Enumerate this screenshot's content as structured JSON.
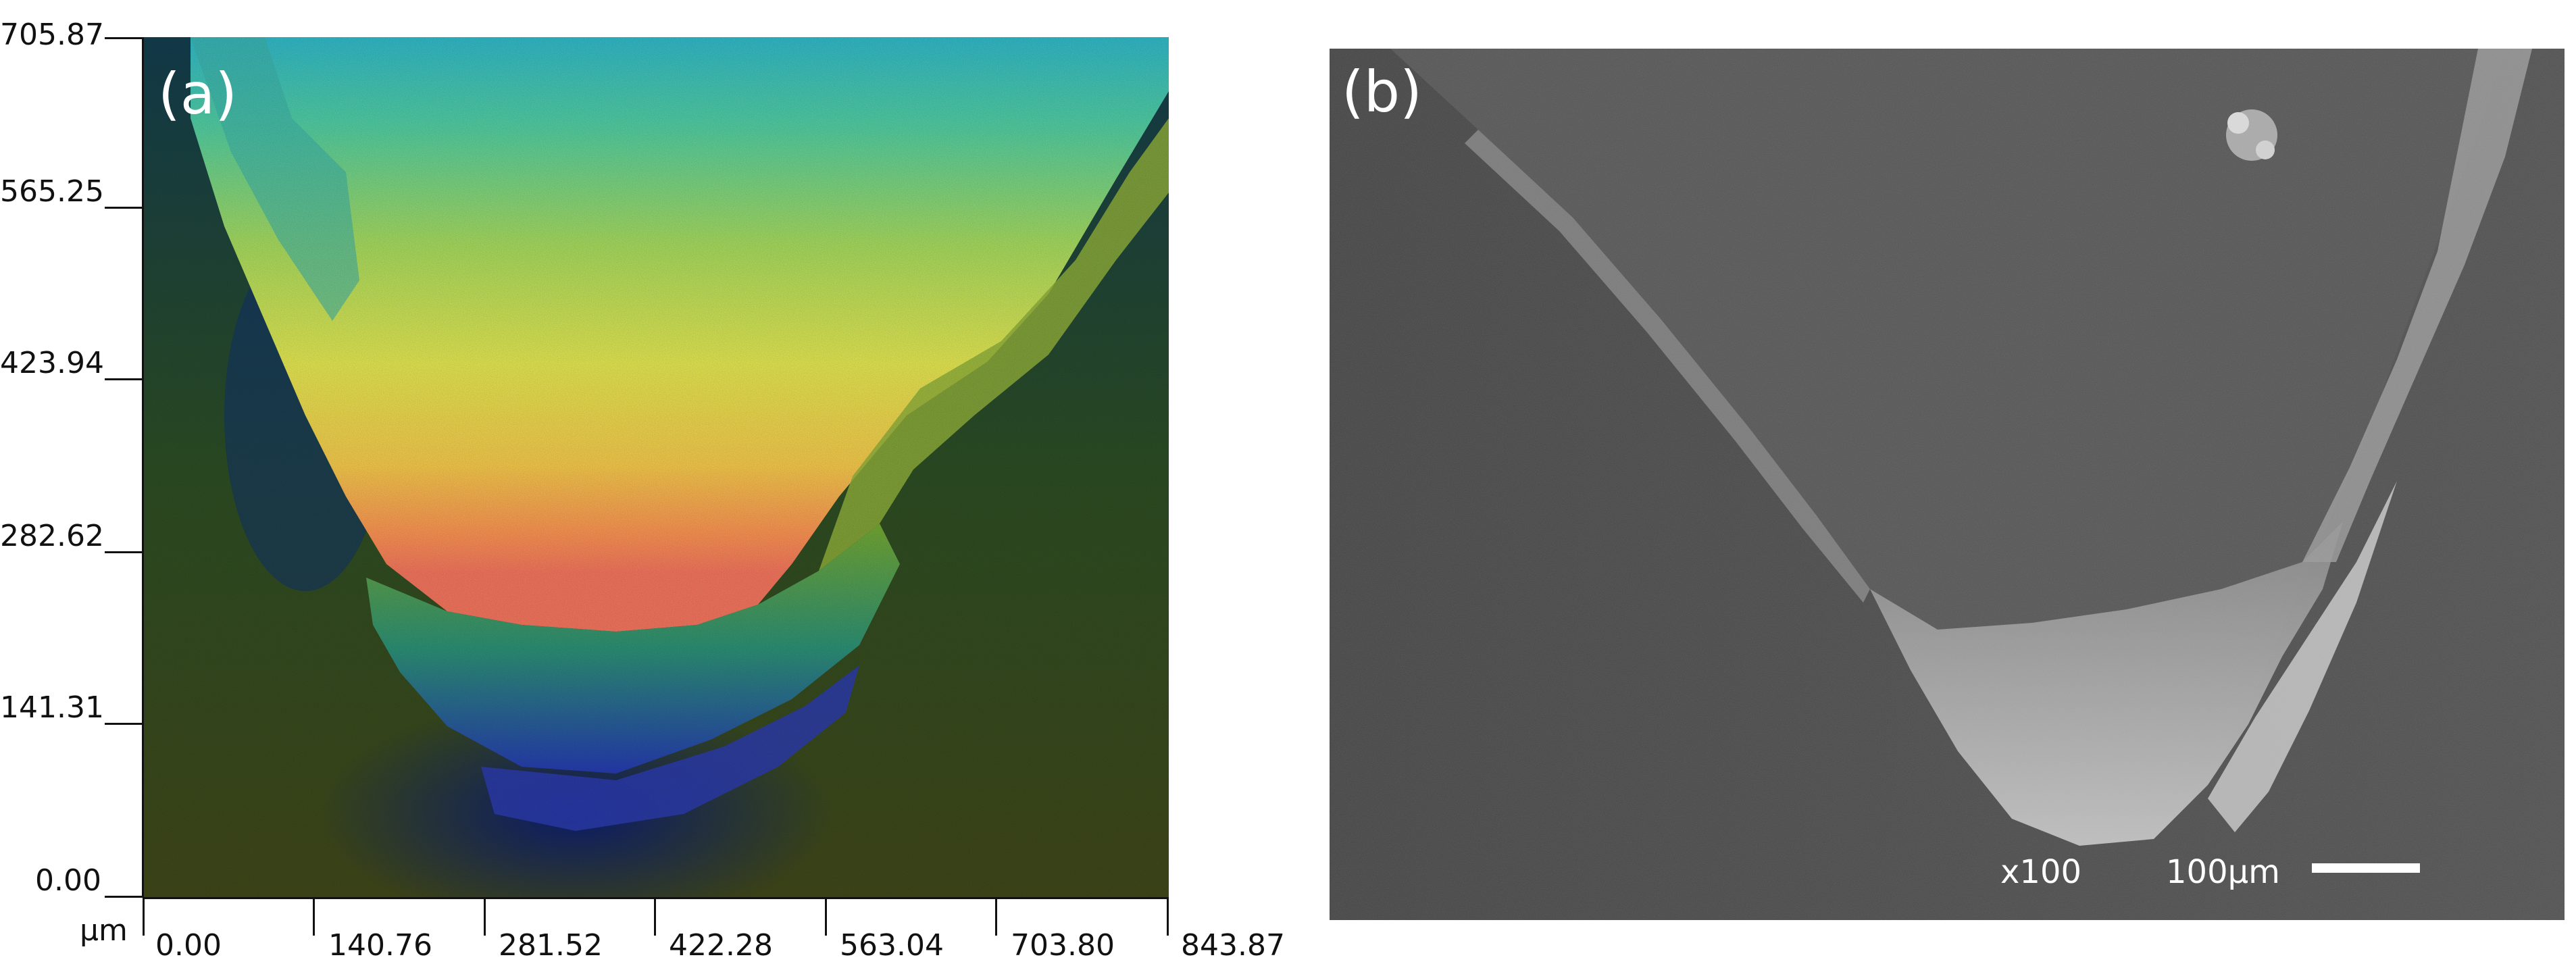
{
  "panel_a": {
    "label": "(a)",
    "unit": "μm",
    "y_ticks": [
      "705.87",
      "565.25",
      "423.94",
      "282.62",
      "141.31",
      "0.00"
    ],
    "x_ticks": [
      "0.00",
      "140.76",
      "281.52",
      "422.28",
      "563.04",
      "703.80",
      "843.87"
    ],
    "colormap": [
      "#1b2a8c",
      "#1f8fb0",
      "#3fb88a",
      "#9fd05a",
      "#e6e24a",
      "#f0a040",
      "#e8705a"
    ]
  },
  "panel_b": {
    "label": "(b)",
    "magnification": "x100",
    "scale_label": "100μm"
  }
}
